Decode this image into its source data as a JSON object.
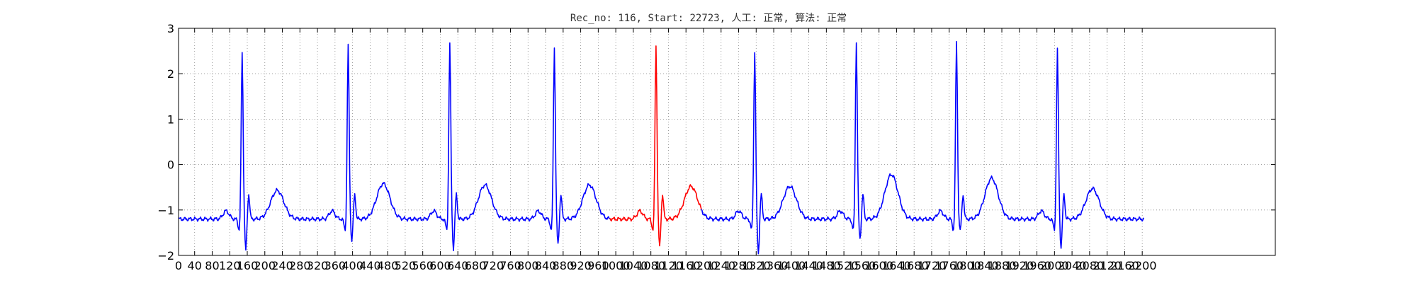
{
  "chart_data": {
    "type": "line",
    "title": "Rec_no: 116, Start: 22723, 人工: 正常, 算法: 正常",
    "xlabel": "",
    "ylabel": "",
    "xlim": [
      0,
      1500
    ],
    "ylim": [
      -2,
      3
    ],
    "y_ticks": [
      -2,
      -1,
      0,
      1,
      2,
      3
    ],
    "y_tick_labels": [
      "−2",
      "−1",
      "0",
      "1",
      "2",
      "3"
    ],
    "x_ticks": [
      0,
      22,
      46,
      70,
      94,
      118,
      142,
      166,
      190,
      214,
      238,
      262,
      286,
      310,
      334,
      358,
      382,
      406,
      430,
      454,
      478,
      502,
      526,
      550,
      574,
      598,
      622,
      646,
      670,
      694,
      718,
      742,
      766,
      790,
      814,
      838,
      862,
      886,
      910,
      934,
      958,
      982,
      1006,
      1030,
      1054,
      1078,
      1102,
      1126,
      1150,
      1174,
      1198,
      1222,
      1246,
      1270,
      1294,
      1318
    ],
    "x_tick_labels": [
      "0",
      "40",
      "80",
      "120",
      "160",
      "200",
      "240",
      "280",
      "320",
      "360",
      "400",
      "440",
      "480",
      "520",
      "560",
      "600",
      "640",
      "680",
      "720",
      "760",
      "800",
      "840",
      "880",
      "920",
      "960",
      "1000",
      "1040",
      "1080",
      "1120",
      "1160",
      "1200",
      "1240",
      "1280",
      "1320",
      "1360",
      "1400",
      "1440",
      "1480",
      "1520",
      "1560",
      "1600",
      "1640",
      "1680",
      "1720",
      "1760",
      "1800",
      "1840",
      "1880",
      "1920",
      "1960",
      "2000",
      "2040",
      "2080",
      "2120",
      "2160",
      "2200"
    ],
    "grid": true,
    "beats": [
      {
        "r_peak": 87,
        "r_value": 2.37,
        "s_value": -1.8,
        "t_value": -0.52,
        "color": "#0000ff"
      },
      {
        "r_peak": 232,
        "r_value": 2.52,
        "s_value": -1.58,
        "t_value": -0.37,
        "color": "#0000ff"
      },
      {
        "r_peak": 371,
        "r_value": 2.57,
        "s_value": -1.76,
        "t_value": -0.4,
        "color": "#0000ff"
      },
      {
        "r_peak": 514,
        "r_value": 2.48,
        "s_value": -1.68,
        "t_value": -0.4,
        "color": "#0000ff"
      },
      {
        "r_peak": 653,
        "r_value": 2.51,
        "s_value": -1.73,
        "t_value": -0.43,
        "color": "#ff0000"
      },
      {
        "r_peak": 788,
        "r_value": 2.41,
        "s_value": -1.86,
        "t_value": -0.43,
        "color": "#0000ff"
      },
      {
        "r_peak": 927,
        "r_value": 2.62,
        "s_value": -1.55,
        "t_value": -0.17,
        "color": "#0000ff"
      },
      {
        "r_peak": 1064,
        "r_value": 2.62,
        "s_value": -1.36,
        "t_value": -0.25,
        "color": "#0000ff"
      },
      {
        "r_peak": 1202,
        "r_value": 2.43,
        "s_value": -1.73,
        "t_value": -0.48,
        "color": "#0000ff"
      }
    ],
    "highlight_range": [
      590,
      715
    ],
    "series_end_x": 1320,
    "colors": {
      "line": "#0000ff",
      "highlight": "#ff0000",
      "axes": "#000000",
      "grid": "#888888"
    }
  }
}
